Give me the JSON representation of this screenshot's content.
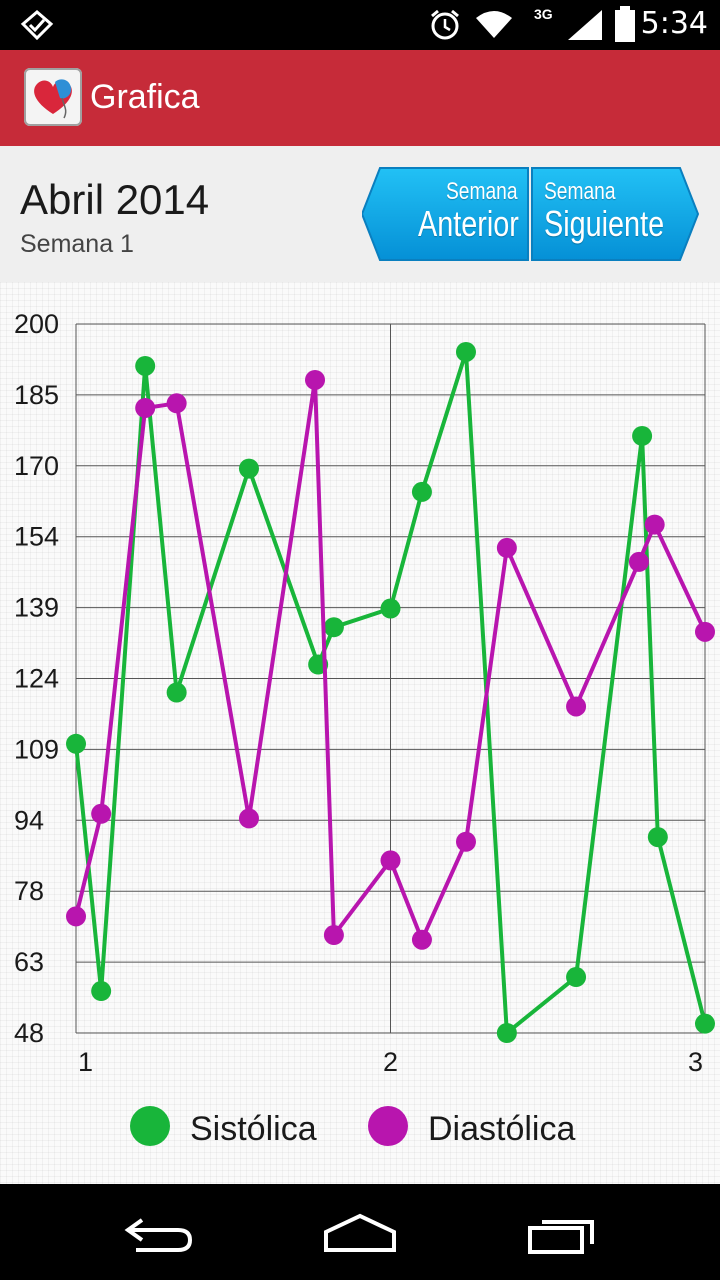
{
  "status_bar": {
    "time": "5:34",
    "network": "3G",
    "icons": [
      "notification-check-icon",
      "alarm-icon",
      "wifi-icon",
      "signal-icon",
      "battery-icon"
    ]
  },
  "action_bar": {
    "title": "Grafica",
    "icon": "heart-balloon-app-icon",
    "color": "#c62b39"
  },
  "header": {
    "month": "Abril 2014",
    "week": "Semana 1",
    "prev_button": {
      "small": "Semana",
      "big": "Anterior"
    },
    "next_button": {
      "small": "Semana",
      "big": "Siguiente"
    },
    "button_color": "#0aa5e6"
  },
  "chart_data": {
    "type": "line",
    "xlim": [
      1,
      3
    ],
    "ylim": [
      48,
      200
    ],
    "x_ticks": [
      "1",
      "2",
      "3"
    ],
    "y_ticks": [
      "200",
      "185",
      "170",
      "154",
      "139",
      "124",
      "109",
      "94",
      "78",
      "63",
      "48"
    ],
    "grid": true,
    "legend_position": "bottom",
    "series": [
      {
        "name": "Sistólica",
        "color": "#18b53a",
        "points": [
          [
            1.0,
            110
          ],
          [
            1.08,
            57
          ],
          [
            1.22,
            191
          ],
          [
            1.32,
            121
          ],
          [
            1.55,
            169
          ],
          [
            1.77,
            127
          ],
          [
            1.82,
            135
          ],
          [
            2.0,
            139
          ],
          [
            2.1,
            164
          ],
          [
            2.24,
            194
          ],
          [
            2.37,
            48
          ],
          [
            2.59,
            60
          ],
          [
            2.8,
            176
          ],
          [
            2.85,
            90
          ],
          [
            3.0,
            50
          ]
        ]
      },
      {
        "name": "Diastólica",
        "color": "#b815ae",
        "points": [
          [
            1.0,
            73
          ],
          [
            1.08,
            95
          ],
          [
            1.22,
            182
          ],
          [
            1.32,
            183
          ],
          [
            1.55,
            94
          ],
          [
            1.76,
            188
          ],
          [
            1.82,
            69
          ],
          [
            2.0,
            85
          ],
          [
            2.1,
            68
          ],
          [
            2.24,
            89
          ],
          [
            2.37,
            152
          ],
          [
            2.59,
            118
          ],
          [
            2.79,
            149
          ],
          [
            2.84,
            157
          ],
          [
            3.0,
            134
          ]
        ]
      }
    ]
  },
  "legend": [
    {
      "label": "Sistólica",
      "color": "#18b53a"
    },
    {
      "label": "Diastólica",
      "color": "#b815ae"
    }
  ]
}
